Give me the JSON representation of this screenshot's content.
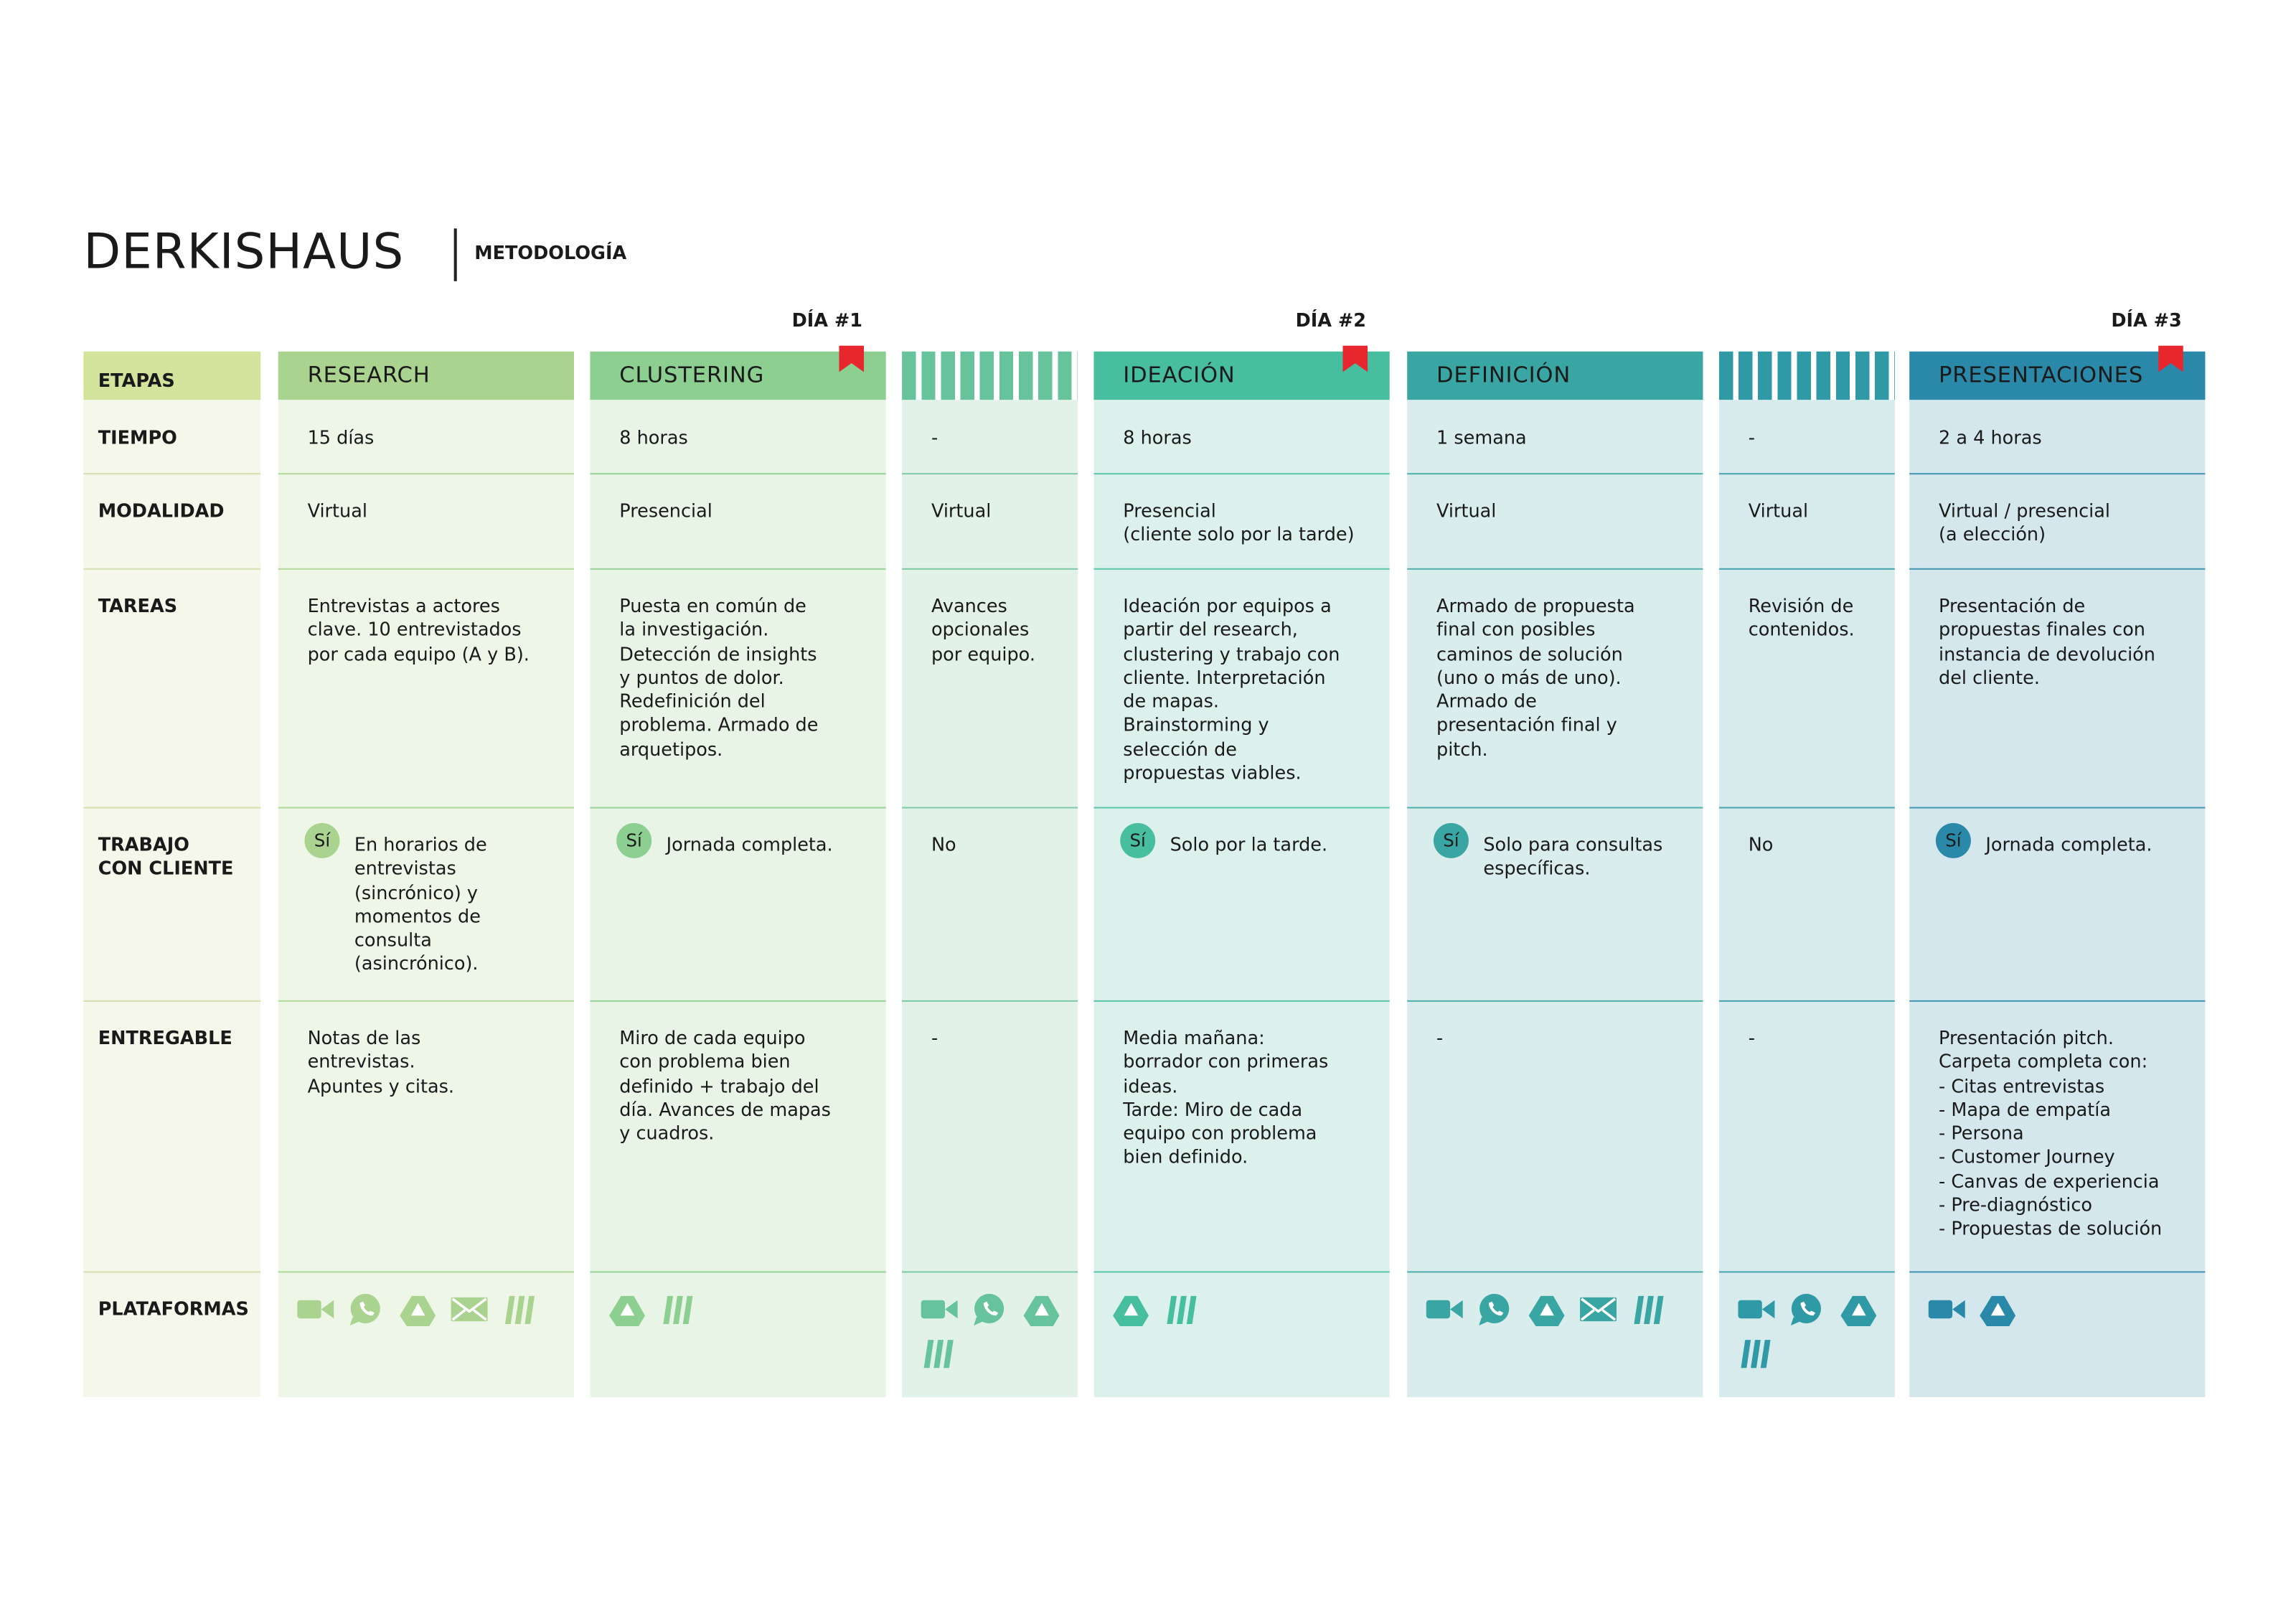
{
  "header": {
    "title": "DERKISHAUS",
    "subtitle": "METODOLOGÍA"
  },
  "days": [
    "DÍA #1",
    "DÍA #2",
    "DÍA #3"
  ],
  "table": {
    "row_labels": [
      "ETAPAS",
      "TIEMPO",
      "MODALIDAD",
      "TAREAS",
      "TRABAJO\nCON CLIENTE",
      "ENTREGABLE",
      "PLATAFORMAS"
    ],
    "columns": [
      {
        "stage": "RESEARCH",
        "tiempo": "15 días",
        "modalidad": "Virtual",
        "tareas": "Entrevistas a actores\nclave. 10 entrevistados\npor cada equipo (A y B).",
        "cliente_badge": "Sí",
        "cliente": "En horarios de\nentrevistas\n(sincrónico) y\nmomentos de\nconsulta\n(asincrónico).",
        "entregable": "Notas de las\nentrevistas.\nApuntes y citas."
      },
      {
        "stage": "CLUSTERING",
        "tiempo": "8 horas",
        "modalidad": "Presencial",
        "tareas": "Puesta en común de\nla investigación.\nDetección de insights\ny puntos de dolor.\nRedefinición del\nproblema. Armado de\narquetipos.",
        "cliente_badge": "Sí",
        "cliente": "Jornada completa.",
        "entregable": "Miro de cada equipo\ncon problema bien\ndefinido + trabajo del\ndía. Avances de mapas\ny cuadros."
      },
      {
        "tiempo": "-",
        "modalidad": "Virtual",
        "tareas": "Avances\nopcionales\npor equipo.",
        "cliente": "No",
        "entregable": "-"
      },
      {
        "stage": "IDEACIÓN",
        "tiempo": "8 horas",
        "modalidad": "Presencial\n(cliente solo por la tarde)",
        "tareas": "Ideación por equipos a\npartir del research,\nclustering y trabajo con\ncliente. Interpretación\nde mapas.\nBrainstorming y\nselección de\npropuestas viables.",
        "cliente_badge": "Sí",
        "cliente": "Solo por la tarde.",
        "entregable": "Media mañana:\nborrador con primeras\nideas.\nTarde: Miro de cada\nequipo con problema\nbien definido."
      },
      {
        "stage": "DEFINICIÓN",
        "tiempo": "1 semana",
        "modalidad": "Virtual",
        "tareas": "Armado de propuesta\nfinal con posibles\ncaminos de solución\n(uno o más de uno).\nArmado de\npresentación final y\npitch.",
        "cliente_badge": "Sí",
        "cliente": "Solo para consultas\nespecíficas.",
        "entregable": "-"
      },
      {
        "tiempo": "-",
        "modalidad": "Virtual",
        "tareas": "Revisión de\ncontenidos.",
        "cliente": "No",
        "entregable": "-"
      },
      {
        "stage": "PRESENTACIONES",
        "tiempo": "2 a 4 horas",
        "modalidad": "Virtual / presencial\n(a elección)",
        "tareas": "Presentación de\npropuestas finales con\ninstancia de devolución\ndel cliente.",
        "cliente_badge": "Sí",
        "cliente": "Jornada completa.",
        "entregable": "Presentación pitch.\nCarpeta completa con:\n- Citas entrevistas\n- Mapa de empatía\n- Persona\n- Customer Journey\n- Canvas de experiencia\n- Pre-diagnóstico\n- Propuestas de solución"
      }
    ]
  }
}
